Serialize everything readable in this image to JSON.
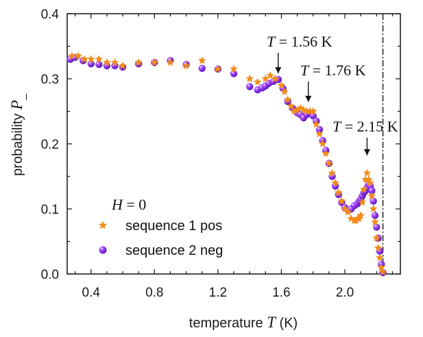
{
  "chart_data": {
    "type": "scatter",
    "xlabel": {
      "prefix": "temperature ",
      "var": "T",
      "suffix": " (K)"
    },
    "ylabel": {
      "prefix": "probability ",
      "var": "P",
      "sub": "_"
    },
    "xlim": [
      0.25,
      2.35
    ],
    "ylim": [
      0.0,
      0.4
    ],
    "xticks": [
      "0.4",
      "0.8",
      "1.2",
      "1.6",
      "2.0"
    ],
    "xtick_values": [
      0.4,
      0.8,
      1.2,
      1.6,
      2.0
    ],
    "yticks": [
      "0.0",
      "0.1",
      "0.2",
      "0.3",
      "0.4"
    ],
    "ytick_values": [
      0.0,
      0.1,
      0.2,
      0.3,
      0.4
    ],
    "grid": false,
    "legend": {
      "title": {
        "var": "H",
        "rest": " = 0"
      },
      "placement": "lower-left",
      "entries": [
        "sequence 1 pos",
        "sequence 2 neg"
      ]
    },
    "colors": {
      "series1": "#f28c1a",
      "series2": "#8a2be2",
      "series2_highlight": "#e6c8ff"
    },
    "vertical_line": {
      "x": 2.24,
      "style": "dash-dot"
    },
    "annotations": [
      {
        "var": "T",
        "text": " = 1.56 K",
        "arrow_x": 1.58,
        "arrow_tip_y": 0.302
      },
      {
        "var": "T",
        "text": " = 1.76 K",
        "arrow_x": 1.77,
        "arrow_tip_y": 0.258
      },
      {
        "var": "T",
        "text": " = 2.15 K",
        "arrow_x": 2.14,
        "arrow_tip_y": 0.176
      }
    ],
    "series": [
      {
        "name": "sequence 1 pos",
        "marker": "star",
        "x": [
          0.28,
          0.32,
          0.36,
          0.4,
          0.45,
          0.5,
          0.55,
          0.6,
          0.7,
          0.8,
          0.9,
          1.0,
          1.1,
          1.2,
          1.3,
          1.4,
          1.45,
          1.5,
          1.53,
          1.56,
          1.6,
          1.62,
          1.64,
          1.66,
          1.68,
          1.7,
          1.72,
          1.74,
          1.76,
          1.78,
          1.8,
          1.82,
          1.84,
          1.86,
          1.88,
          1.9,
          1.92,
          1.94,
          1.96,
          1.98,
          2.0,
          2.02,
          2.04,
          2.06,
          2.07,
          2.08,
          2.09,
          2.1,
          2.11,
          2.12,
          2.13,
          2.14,
          2.15,
          2.16,
          2.17,
          2.18,
          2.19,
          2.2,
          2.21,
          2.22,
          2.23,
          2.24
        ],
        "y": [
          0.335,
          0.335,
          0.33,
          0.33,
          0.33,
          0.325,
          0.325,
          0.32,
          0.325,
          0.325,
          0.325,
          0.32,
          0.328,
          0.315,
          0.315,
          0.3,
          0.295,
          0.3,
          0.305,
          0.3,
          0.29,
          0.28,
          0.268,
          0.258,
          0.25,
          0.252,
          0.255,
          0.252,
          0.25,
          0.25,
          0.25,
          0.23,
          0.215,
          0.2,
          0.185,
          0.17,
          0.155,
          0.14,
          0.125,
          0.112,
          0.1,
          0.095,
          0.085,
          0.082,
          0.082,
          0.085,
          0.085,
          0.09,
          0.11,
          0.13,
          0.145,
          0.155,
          0.145,
          0.14,
          0.12,
          0.1,
          0.08,
          0.055,
          0.04,
          0.025,
          0.01,
          0.003
        ]
      },
      {
        "name": "sequence 2 neg",
        "marker": "sphere",
        "x": [
          0.27,
          0.3,
          0.35,
          0.4,
          0.45,
          0.5,
          0.55,
          0.6,
          0.7,
          0.8,
          0.9,
          1.0,
          1.1,
          1.2,
          1.3,
          1.4,
          1.45,
          1.48,
          1.5,
          1.52,
          1.55,
          1.58,
          1.61,
          1.64,
          1.67,
          1.7,
          1.72,
          1.74,
          1.76,
          1.78,
          1.8,
          1.82,
          1.84,
          1.86,
          1.88,
          1.9,
          1.92,
          1.94,
          1.96,
          1.98,
          2.0,
          2.02,
          2.04,
          2.06,
          2.08,
          2.09,
          2.1,
          2.11,
          2.12,
          2.13,
          2.14,
          2.15,
          2.16,
          2.17,
          2.18,
          2.19,
          2.2,
          2.21,
          2.22,
          2.23,
          2.24
        ],
        "y": [
          0.33,
          0.333,
          0.328,
          0.323,
          0.322,
          0.32,
          0.32,
          0.318,
          0.323,
          0.325,
          0.328,
          0.322,
          0.316,
          0.315,
          0.308,
          0.288,
          0.283,
          0.286,
          0.289,
          0.293,
          0.296,
          0.299,
          0.285,
          0.265,
          0.255,
          0.248,
          0.245,
          0.24,
          0.245,
          0.248,
          0.243,
          0.235,
          0.222,
          0.205,
          0.19,
          0.17,
          0.15,
          0.135,
          0.122,
          0.11,
          0.102,
          0.098,
          0.1,
          0.105,
          0.108,
          0.112,
          0.115,
          0.12,
          0.125,
          0.128,
          0.133,
          0.138,
          0.135,
          0.128,
          0.112,
          0.09,
          0.072,
          0.055,
          0.035,
          0.015,
          0.002
        ]
      }
    ]
  }
}
